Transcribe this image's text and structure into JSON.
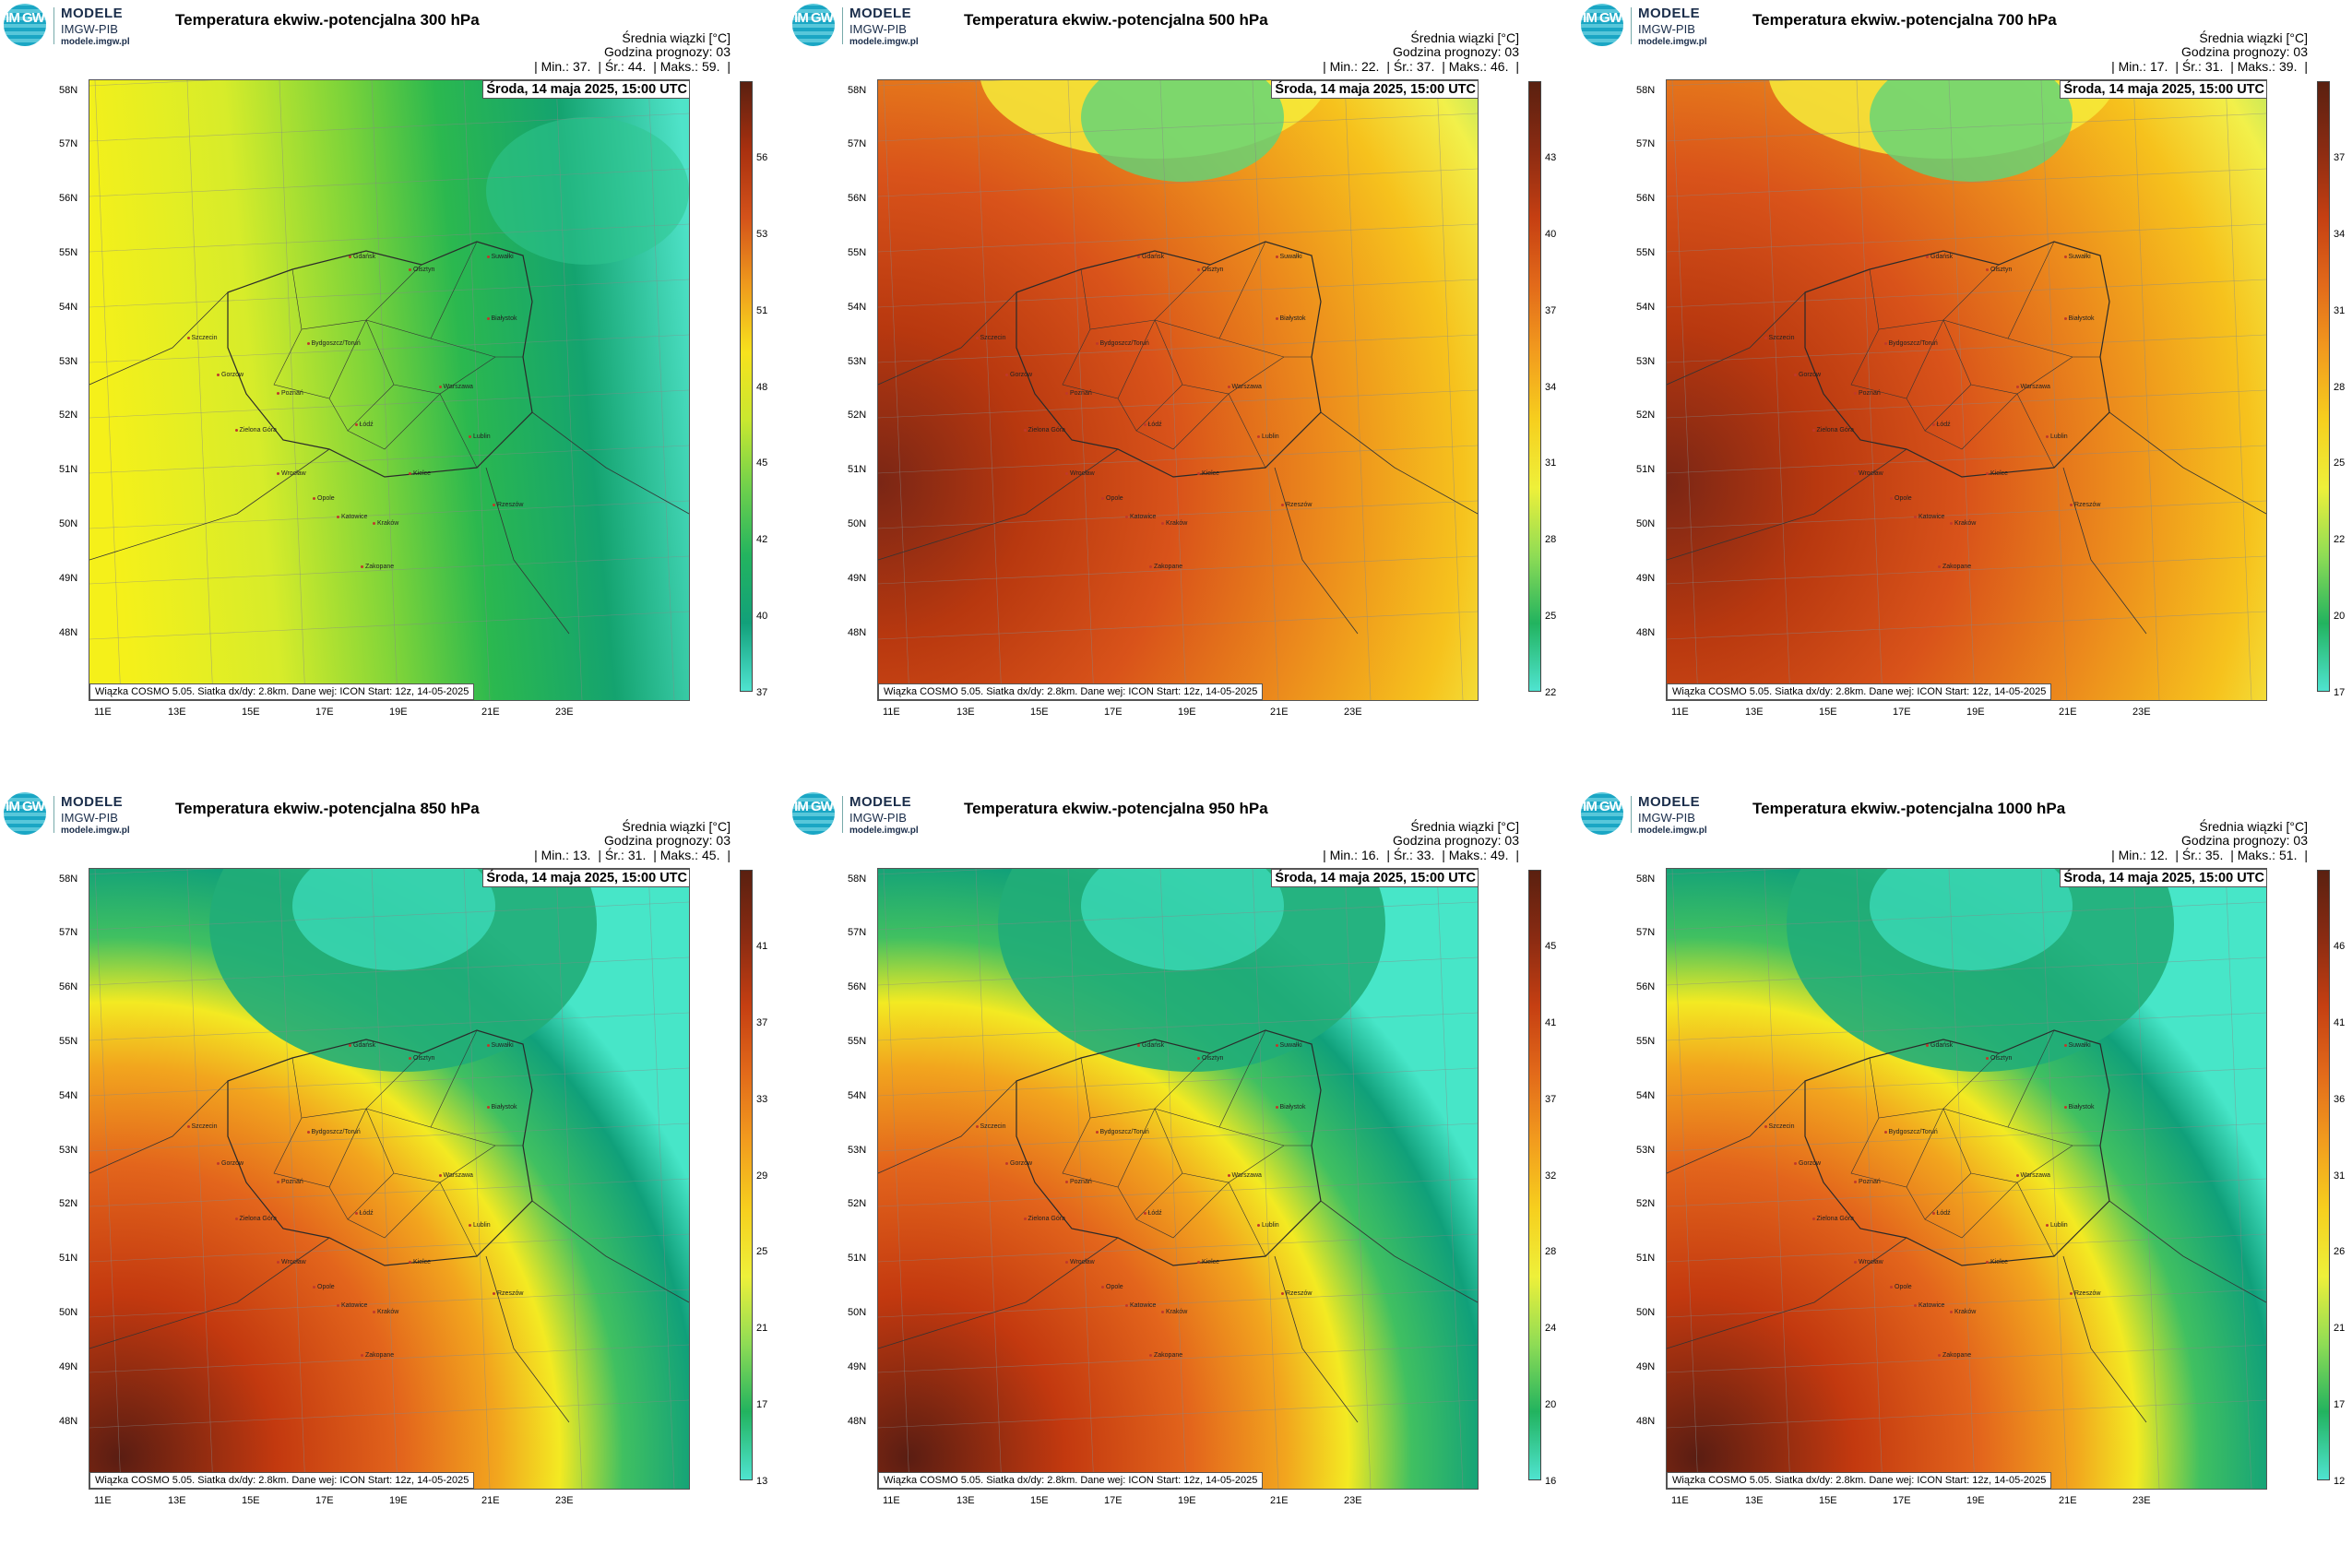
{
  "branding": {
    "logo_text": "IM GW",
    "name": "MODELE",
    "org": "IMGW-PIB",
    "url": "modele.imgw.pl"
  },
  "common": {
    "info_line1": "Średnia wiązki [°C]",
    "info_line2": "Godzina prognozy: 03",
    "date": "Środa, 14 maja 2025, 15:00 UTC",
    "credit": "Wiązka COSMO 5.05. Siatka dx/dy: 2.8km. Dane wej: ICON Start: 12z, 14-05-2025",
    "lat_labels": [
      "58N",
      "57N",
      "56N",
      "55N",
      "54N",
      "53N",
      "52N",
      "51N",
      "50N",
      "49N",
      "48N"
    ],
    "lon_labels": [
      "11E",
      "13E",
      "15E",
      "17E",
      "19E",
      "21E",
      "23E"
    ],
    "cities": [
      "Gdańsk",
      "Olsztyn",
      "Suwałki",
      "Białystok",
      "Szczecin",
      "Bydgoszcz/Toruń",
      "Gorzów",
      "Poznań",
      "Warszawa",
      "Zielona Góra",
      "Łódź",
      "Lublin",
      "Wrocław",
      "Kielce",
      "Opole",
      "Rzeszów",
      "Katowice",
      "Kraków",
      "Zakopane"
    ]
  },
  "panels": [
    {
      "title": "Temperatura ekwiw.-potencjalna 300 hPa",
      "stats": {
        "min_label": "| Min.:",
        "min": "37.",
        "avg_label": "| Śr.:",
        "avg": "44.",
        "max_label": "| Maks.:",
        "max": "59.",
        "end": "|"
      },
      "colorbar_ticks": [
        "56",
        "53",
        "51",
        "48",
        "45",
        "42",
        "40",
        "37"
      ],
      "palette": "cool"
    },
    {
      "title": "Temperatura ekwiw.-potencjalna 500 hPa",
      "stats": {
        "min_label": "| Min.:",
        "min": "22.",
        "avg_label": "| Śr.:",
        "avg": "37.",
        "max_label": "| Maks.:",
        "max": "46.",
        "end": "|"
      },
      "colorbar_ticks": [
        "43",
        "40",
        "37",
        "34",
        "31",
        "28",
        "25",
        "22"
      ],
      "palette": "warm"
    },
    {
      "title": "Temperatura ekwiw.-potencjalna 700 hPa",
      "stats": {
        "min_label": "| Min.:",
        "min": "17.",
        "avg_label": "| Śr.:",
        "avg": "31.",
        "max_label": "| Maks.:",
        "max": "39.",
        "end": "|"
      },
      "colorbar_ticks": [
        "37",
        "34",
        "31",
        "28",
        "25",
        "22",
        "20",
        "17"
      ],
      "palette": "warm"
    },
    {
      "title": "Temperatura ekwiw.-potencjalna 850 hPa",
      "stats": {
        "min_label": "| Min.:",
        "min": "13.",
        "avg_label": "| Śr.:",
        "avg": "31.",
        "max_label": "| Maks.:",
        "max": "45.",
        "end": "|"
      },
      "colorbar_ticks": [
        "41",
        "37",
        "33",
        "29",
        "25",
        "21",
        "17",
        "13"
      ],
      "palette": "split"
    },
    {
      "title": "Temperatura ekwiw.-potencjalna 950 hPa",
      "stats": {
        "min_label": "| Min.:",
        "min": "16.",
        "avg_label": "| Śr.:",
        "avg": "33.",
        "max_label": "| Maks.:",
        "max": "49.",
        "end": "|"
      },
      "colorbar_ticks": [
        "45",
        "41",
        "37",
        "32",
        "28",
        "24",
        "20",
        "16"
      ],
      "palette": "split"
    },
    {
      "title": "Temperatura ekwiw.-potencjalna 1000 hPa",
      "stats": {
        "min_label": "| Min.:",
        "min": "12.",
        "avg_label": "| Śr.:",
        "avg": "35.",
        "max_label": "| Maks.:",
        "max": "51.",
        "end": "|"
      },
      "colorbar_ticks": [
        "46",
        "41",
        "36",
        "31",
        "26",
        "21",
        "17",
        "12"
      ],
      "palette": "split"
    }
  ]
}
